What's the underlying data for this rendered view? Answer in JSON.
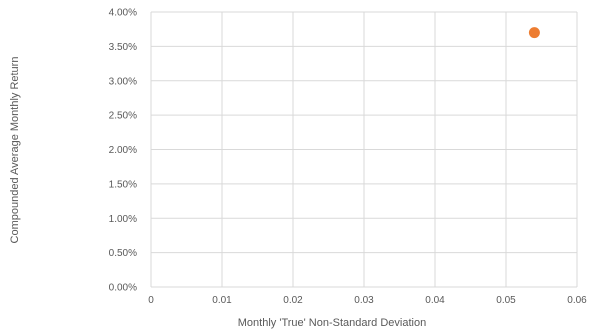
{
  "chart_data": {
    "type": "scatter",
    "title": "",
    "xlabel": "Monthly 'True' Non-Standard Deviation",
    "ylabel": "Compounded Average Monthly Return",
    "xlim": [
      0,
      0.06
    ],
    "ylim": [
      0,
      0.04
    ],
    "x_ticks": [
      "0",
      "0.01",
      "0.02",
      "0.03",
      "0.04",
      "0.05",
      "0.06"
    ],
    "y_ticks": [
      "0.00%",
      "0.50%",
      "1.00%",
      "1.50%",
      "2.00%",
      "2.50%",
      "3.00%",
      "3.50%",
      "4.00%"
    ],
    "grid": "vertical and horizontal major gridlines",
    "legend": "none",
    "series": [
      {
        "color": "#ED7D31",
        "points": [
          {
            "x": 0.054,
            "y": 0.037
          }
        ]
      }
    ]
  }
}
